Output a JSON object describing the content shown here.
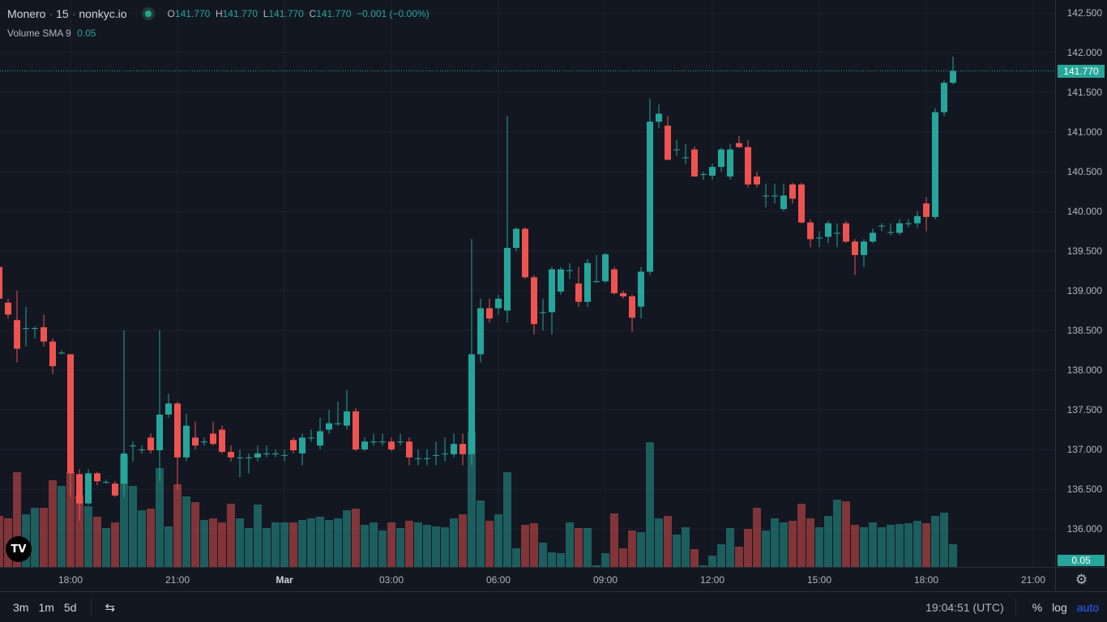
{
  "header": {
    "symbol": "Monero",
    "interval": "15",
    "exchange": "nonkyc.io",
    "sep": "·",
    "o_label": "O",
    "o": "141.770",
    "h_label": "H",
    "h": "141.770",
    "l_label": "L",
    "l": "141.770",
    "c_label": "C",
    "c": "141.770",
    "change": "−0.001 (−0.00%)"
  },
  "volume_legend": {
    "name": "Volume",
    "study": "SMA 9",
    "value": "0.05"
  },
  "price_axis": {
    "labels": [
      "142.500",
      "142.000",
      "141.500",
      "141.000",
      "140.500",
      "140.000",
      "139.500",
      "139.000",
      "138.500",
      "138.000",
      "137.500",
      "137.000",
      "136.500",
      "136.000"
    ],
    "current": "141.770",
    "volume_current": "0.05"
  },
  "time_axis": {
    "labels": [
      "18:00",
      "21:00",
      "Mar",
      "03:00",
      "06:00",
      "09:00",
      "12:00",
      "15:00",
      "18:00",
      "21:00"
    ]
  },
  "bottom_bar": {
    "ranges": [
      "3m",
      "1m",
      "5d"
    ],
    "clock": "19:04:51 (UTC)",
    "percent": "%",
    "log": "log",
    "auto": "auto"
  },
  "logo_text": "TV",
  "colors": {
    "up": "#26a69a",
    "down": "#ef5350",
    "bg": "#131722",
    "accent": "#2962ff"
  },
  "chart_data": {
    "type": "candlestick",
    "interval_minutes": 15,
    "ylim": [
      135.6,
      142.7
    ],
    "ohlc": [
      [
        139.3,
        139.35,
        138.85,
        138.9
      ],
      [
        138.85,
        138.9,
        138.65,
        138.7
      ],
      [
        138.63,
        139.0,
        138.1,
        138.27
      ],
      [
        138.53,
        138.8,
        138.3,
        138.53
      ],
      [
        138.53,
        138.55,
        138.4,
        138.53
      ],
      [
        138.54,
        138.7,
        138.3,
        138.36
      ],
      [
        138.36,
        138.4,
        137.95,
        138.05
      ],
      [
        138.22,
        138.25,
        138.2,
        138.22
      ],
      [
        138.2,
        138.2,
        136.4,
        136.7
      ],
      [
        136.69,
        136.75,
        136.1,
        136.32
      ],
      [
        136.32,
        136.75,
        136.3,
        136.7
      ],
      [
        136.7,
        136.72,
        136.55,
        136.6
      ],
      [
        136.59,
        136.62,
        136.57,
        136.59
      ],
      [
        136.57,
        136.6,
        136.4,
        136.42
      ],
      [
        136.57,
        138.5,
        136.4,
        136.95
      ],
      [
        137.05,
        137.1,
        136.85,
        137.05
      ],
      [
        137.0,
        137.05,
        136.95,
        137.0
      ],
      [
        137.15,
        137.2,
        136.95,
        136.99
      ],
      [
        136.99,
        138.5,
        136.6,
        137.44
      ],
      [
        137.44,
        137.7,
        137.4,
        137.58
      ],
      [
        137.58,
        137.6,
        136.5,
        136.9
      ],
      [
        136.9,
        137.45,
        136.85,
        137.3
      ],
      [
        137.15,
        137.35,
        137.0,
        137.05
      ],
      [
        137.1,
        137.15,
        137.05,
        137.1
      ],
      [
        137.2,
        137.35,
        137.05,
        137.07
      ],
      [
        137.25,
        137.3,
        136.95,
        136.97
      ],
      [
        136.97,
        137.05,
        136.85,
        136.9
      ],
      [
        136.9,
        137.0,
        136.65,
        136.9
      ],
      [
        136.9,
        136.95,
        136.7,
        136.9
      ],
      [
        136.9,
        137.05,
        136.85,
        136.95
      ],
      [
        136.95,
        137.05,
        136.9,
        136.95
      ],
      [
        136.95,
        137.0,
        136.9,
        136.95
      ],
      [
        136.93,
        137.0,
        136.85,
        136.93
      ],
      [
        137.12,
        137.15,
        136.95,
        136.99
      ],
      [
        136.95,
        137.2,
        136.8,
        137.15
      ],
      [
        137.15,
        137.25,
        137.1,
        137.15
      ],
      [
        137.05,
        137.4,
        137.0,
        137.23
      ],
      [
        137.25,
        137.5,
        137.2,
        137.33
      ],
      [
        137.33,
        137.6,
        137.3,
        137.33
      ],
      [
        137.3,
        137.75,
        137.25,
        137.48
      ],
      [
        137.48,
        137.52,
        136.98,
        137.0
      ],
      [
        137.0,
        137.15,
        136.98,
        137.1
      ],
      [
        137.1,
        137.2,
        137.05,
        137.1
      ],
      [
        137.1,
        137.2,
        137.05,
        137.1
      ],
      [
        137.1,
        137.15,
        136.98,
        137.0
      ],
      [
        137.1,
        137.2,
        137.05,
        137.1
      ],
      [
        137.1,
        137.15,
        136.8,
        136.9
      ],
      [
        136.89,
        137.0,
        136.8,
        136.89
      ],
      [
        136.89,
        137.0,
        136.8,
        136.89
      ],
      [
        136.93,
        137.1,
        136.8,
        136.93
      ],
      [
        136.95,
        137.15,
        136.85,
        136.95
      ],
      [
        136.94,
        137.2,
        136.9,
        137.07
      ],
      [
        137.07,
        137.2,
        136.8,
        136.94
      ],
      [
        136.94,
        139.65,
        136.8,
        138.2
      ],
      [
        138.2,
        138.9,
        138.1,
        138.78
      ],
      [
        138.78,
        138.9,
        138.6,
        138.65
      ],
      [
        138.78,
        138.95,
        138.7,
        138.9
      ],
      [
        138.75,
        141.2,
        138.6,
        139.54
      ],
      [
        139.54,
        139.8,
        139.5,
        139.78
      ],
      [
        139.78,
        139.8,
        139.15,
        139.17
      ],
      [
        139.17,
        139.2,
        138.45,
        138.58
      ],
      [
        138.73,
        138.9,
        138.5,
        138.73
      ],
      [
        138.73,
        139.3,
        138.45,
        139.27
      ],
      [
        138.99,
        139.3,
        138.95,
        139.27
      ],
      [
        139.26,
        139.35,
        139.15,
        139.26
      ],
      [
        139.09,
        139.3,
        138.8,
        138.86
      ],
      [
        138.86,
        139.4,
        138.8,
        139.35
      ],
      [
        139.12,
        139.45,
        139.1,
        139.12
      ],
      [
        139.12,
        139.48,
        139.1,
        139.46
      ],
      [
        139.27,
        139.3,
        138.95,
        138.97
      ],
      [
        138.97,
        139.0,
        138.9,
        138.93
      ],
      [
        138.93,
        138.95,
        138.48,
        138.66
      ],
      [
        138.8,
        139.3,
        138.65,
        139.24
      ],
      [
        139.24,
        141.42,
        139.2,
        141.13
      ],
      [
        141.13,
        141.35,
        141.05,
        141.23
      ],
      [
        141.08,
        141.2,
        140.65,
        140.65
      ],
      [
        140.78,
        140.9,
        140.7,
        140.78
      ],
      [
        140.68,
        140.85,
        140.6,
        140.68
      ],
      [
        140.78,
        140.82,
        140.44,
        140.44
      ],
      [
        140.47,
        140.5,
        140.4,
        140.47
      ],
      [
        140.45,
        140.6,
        140.4,
        140.56
      ],
      [
        140.56,
        140.8,
        140.5,
        140.78
      ],
      [
        140.44,
        140.85,
        140.4,
        140.78
      ],
      [
        140.86,
        140.95,
        140.8,
        140.81
      ],
      [
        140.81,
        140.9,
        140.3,
        140.34
      ],
      [
        140.44,
        140.5,
        140.3,
        140.34
      ],
      [
        140.2,
        140.35,
        140.05,
        140.2
      ],
      [
        140.2,
        140.35,
        140.1,
        140.2
      ],
      [
        140.03,
        140.35,
        140.0,
        140.2
      ],
      [
        140.34,
        140.36,
        140.1,
        140.16
      ],
      [
        140.34,
        140.36,
        139.85,
        139.86
      ],
      [
        139.86,
        139.9,
        139.55,
        139.65
      ],
      [
        139.67,
        139.75,
        139.55,
        139.67
      ],
      [
        139.68,
        139.88,
        139.6,
        139.85
      ],
      [
        139.73,
        139.85,
        139.55,
        139.73
      ],
      [
        139.85,
        139.88,
        139.6,
        139.62
      ],
      [
        139.62,
        139.65,
        139.2,
        139.45
      ],
      [
        139.45,
        139.65,
        139.3,
        139.62
      ],
      [
        139.62,
        139.78,
        139.6,
        139.73
      ],
      [
        139.82,
        139.85,
        139.75,
        139.82
      ],
      [
        139.74,
        139.85,
        139.7,
        139.74
      ],
      [
        139.73,
        139.9,
        139.7,
        139.85
      ],
      [
        139.85,
        139.9,
        139.8,
        139.85
      ],
      [
        139.85,
        140.0,
        139.8,
        139.94
      ],
      [
        140.1,
        140.18,
        139.75,
        139.93
      ],
      [
        139.93,
        141.3,
        139.9,
        141.25
      ],
      [
        141.25,
        141.65,
        141.2,
        141.62
      ],
      [
        141.62,
        141.95,
        141.6,
        141.77
      ]
    ],
    "volume": [
      63,
      60,
      117,
      65,
      73,
      73,
      107,
      100,
      117,
      88,
      75,
      62,
      48,
      55,
      138,
      100,
      70,
      72,
      122,
      50,
      102,
      87,
      80,
      58,
      60,
      55,
      78,
      60,
      48,
      77,
      48,
      55,
      55,
      55,
      58,
      60,
      62,
      58,
      60,
      70,
      72,
      52,
      55,
      45,
      55,
      48,
      57,
      55,
      52,
      50,
      49,
      60,
      65,
      167,
      82,
      57,
      65,
      117,
      23,
      52,
      54,
      30,
      18,
      17,
      55,
      48,
      48,
      2,
      17,
      66,
      23,
      45,
      43,
      154,
      60,
      63,
      40,
      49,
      22,
      2,
      14,
      28,
      48,
      25,
      47,
      73,
      45,
      60,
      55,
      57,
      78,
      60,
      49,
      63,
      83,
      81,
      52,
      49,
      55,
      49,
      52,
      53,
      54,
      57,
      54,
      63,
      67,
      28
    ]
  }
}
